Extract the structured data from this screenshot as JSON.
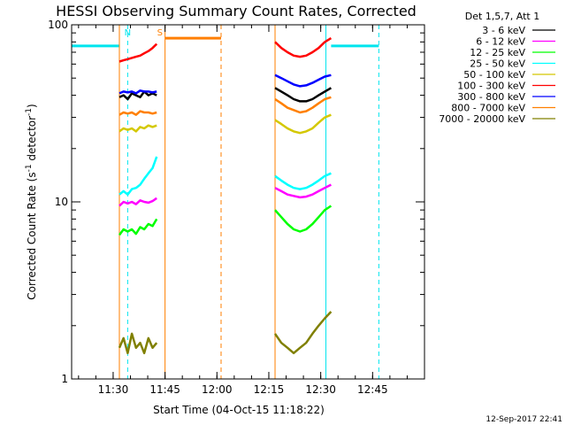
{
  "colors": {
    "background": "#ffffff",
    "axis": "#000000",
    "attenuator_line": "#00e5ee",
    "saa_line": "#ff7f00"
  },
  "chart_data": {
    "type": "line",
    "title": "HESSI Observing Summary Count Rates, Corrected",
    "xlabel": "Start Time (04-Oct-15 11:18:22)",
    "ylabel": "Corrected Count Rate (s⁻¹ detector⁻¹)",
    "ylabel_parts": {
      "main": "Corrected Count Rate (s",
      "sup1": "-1",
      "mid": " detector",
      "sup2": "-1",
      "end": ")"
    },
    "yscale": "log",
    "xlim_minutes": [
      11.3,
      13.0
    ],
    "ylim": [
      1,
      100
    ],
    "x_ticks": [
      "11:30",
      "11:45",
      "12:00",
      "12:15",
      "12:30",
      "12:45"
    ],
    "x_tick_values": [
      11.5,
      11.75,
      12.0,
      12.25,
      12.5,
      12.75
    ],
    "y_ticks": [
      "1",
      "10",
      "100"
    ],
    "y_tick_values": [
      1,
      10,
      100
    ],
    "legend_title": "Det 1,5,7, Att 1",
    "legend_position": "top-right",
    "series": [
      {
        "name": "3 - 6 keV",
        "color": "#000000",
        "segments": [
          {
            "x": [
              11.53,
              11.55,
              11.57,
              11.59,
              11.61,
              11.63,
              11.65,
              11.67,
              11.69,
              11.71
            ],
            "y": [
              39,
              40,
              38,
              41,
              40,
              39,
              42,
              40,
              41,
              40
            ]
          },
          {
            "x": [
              12.28,
              12.31,
              12.34,
              12.37,
              12.4,
              12.43,
              12.46,
              12.49,
              12.52,
              12.55
            ],
            "y": [
              44,
              42,
              40,
              38,
              37,
              37,
              38,
              40,
              42,
              44
            ]
          }
        ]
      },
      {
        "name": "6 - 12 keV",
        "color": "#ff00ff",
        "segments": [
          {
            "x": [
              11.53,
              11.55,
              11.57,
              11.59,
              11.61,
              11.63,
              11.65,
              11.67,
              11.69,
              11.71
            ],
            "y": [
              9.5,
              10,
              9.8,
              10,
              9.7,
              10.2,
              10,
              9.9,
              10.1,
              10.5
            ]
          },
          {
            "x": [
              12.28,
              12.31,
              12.34,
              12.37,
              12.4,
              12.43,
              12.46,
              12.49,
              12.52,
              12.55
            ],
            "y": [
              12,
              11.5,
              11,
              10.8,
              10.6,
              10.7,
              11,
              11.5,
              12,
              12.5
            ]
          }
        ]
      },
      {
        "name": "12 - 25 keV",
        "color": "#00ff00",
        "segments": [
          {
            "x": [
              11.53,
              11.55,
              11.57,
              11.59,
              11.61,
              11.63,
              11.65,
              11.67,
              11.69,
              11.71
            ],
            "y": [
              6.5,
              7,
              6.8,
              7,
              6.6,
              7.2,
              7,
              7.5,
              7.3,
              8
            ]
          },
          {
            "x": [
              12.28,
              12.31,
              12.34,
              12.37,
              12.4,
              12.43,
              12.46,
              12.49,
              12.52,
              12.55
            ],
            "y": [
              9,
              8.2,
              7.5,
              7,
              6.8,
              7,
              7.5,
              8.2,
              9,
              9.5
            ]
          }
        ]
      },
      {
        "name": "25 - 50 keV",
        "color": "#00ffff",
        "segments": [
          {
            "x": [
              11.53,
              11.55,
              11.57,
              11.59,
              11.61,
              11.63,
              11.65,
              11.67,
              11.69,
              11.71
            ],
            "y": [
              11,
              11.5,
              11,
              11.8,
              12,
              12.5,
              13.5,
              14.5,
              15.5,
              18
            ]
          },
          {
            "x": [
              12.28,
              12.31,
              12.34,
              12.37,
              12.4,
              12.43,
              12.46,
              12.49,
              12.52,
              12.55
            ],
            "y": [
              14,
              13.2,
              12.5,
              12,
              11.8,
              12,
              12.5,
              13.2,
              14,
              14.5
            ]
          }
        ]
      },
      {
        "name": "50 - 100 keV",
        "color": "#d4c800",
        "segments": [
          {
            "x": [
              11.53,
              11.55,
              11.57,
              11.59,
              11.61,
              11.63,
              11.65,
              11.67,
              11.69,
              11.71
            ],
            "y": [
              25,
              26,
              25.5,
              26,
              25,
              26.5,
              26,
              27,
              26.5,
              27
            ]
          },
          {
            "x": [
              12.28,
              12.31,
              12.34,
              12.37,
              12.4,
              12.43,
              12.46,
              12.49,
              12.52,
              12.55
            ],
            "y": [
              29,
              27.5,
              26,
              25,
              24.5,
              25,
              26,
              28,
              30,
              31
            ]
          }
        ]
      },
      {
        "name": "100 - 300 keV",
        "color": "#ff0000",
        "segments": [
          {
            "x": [
              11.53,
              11.55,
              11.57,
              11.59,
              11.61,
              11.63,
              11.65,
              11.67,
              11.69,
              11.71
            ],
            "y": [
              62,
              63,
              64,
              65,
              66,
              67,
              69,
              71,
              74,
              78
            ]
          },
          {
            "x": [
              12.28,
              12.31,
              12.34,
              12.37,
              12.4,
              12.43,
              12.46,
              12.49,
              12.52,
              12.55
            ],
            "y": [
              80,
              74,
              70,
              67,
              66,
              67,
              70,
              74,
              80,
              84
            ]
          }
        ]
      },
      {
        "name": "300 - 800 keV",
        "color": "#0000ff",
        "segments": [
          {
            "x": [
              11.53,
              11.55,
              11.57,
              11.59,
              11.61,
              11.63,
              11.65,
              11.67,
              11.69,
              11.71
            ],
            "y": [
              41,
              42,
              41.5,
              42,
              41,
              42.5,
              42,
              42,
              41.5,
              42
            ]
          },
          {
            "x": [
              12.28,
              12.31,
              12.34,
              12.37,
              12.4,
              12.43,
              12.46,
              12.49,
              12.52,
              12.55
            ],
            "y": [
              52,
              50,
              48,
              46,
              45,
              45.5,
              47,
              49,
              51,
              52
            ]
          }
        ]
      },
      {
        "name": "800 - 7000 keV",
        "color": "#ff8000",
        "segments": [
          {
            "x": [
              11.53,
              11.55,
              11.57,
              11.59,
              11.61,
              11.63,
              11.65,
              11.67,
              11.69,
              11.71
            ],
            "y": [
              31,
              32,
              31.5,
              32,
              31,
              32.5,
              32,
              32,
              31.5,
              32
            ]
          },
          {
            "x": [
              12.28,
              12.31,
              12.34,
              12.37,
              12.4,
              12.43,
              12.46,
              12.49,
              12.52,
              12.55
            ],
            "y": [
              38,
              36,
              34,
              33,
              32,
              32.5,
              34,
              36,
              38,
              39
            ]
          }
        ]
      },
      {
        "name": "7000 - 20000 keV",
        "color": "#808000",
        "segments": [
          {
            "x": [
              11.53,
              11.55,
              11.57,
              11.59,
              11.61,
              11.63,
              11.65,
              11.67,
              11.69,
              11.71
            ],
            "y": [
              1.5,
              1.7,
              1.4,
              1.8,
              1.5,
              1.6,
              1.4,
              1.7,
              1.5,
              1.6
            ]
          },
          {
            "x": [
              12.28,
              12.31,
              12.34,
              12.37,
              12.4,
              12.43,
              12.46,
              12.49,
              12.52,
              12.55
            ],
            "y": [
              1.8,
              1.6,
              1.5,
              1.4,
              1.5,
              1.6,
              1.8,
              2.0,
              2.2,
              2.4
            ]
          }
        ]
      }
    ],
    "attenuator_state": {
      "color": "#00e5ee",
      "level": 76,
      "segments": [
        [
          11.3,
          11.53
        ],
        [
          12.55,
          12.78
        ]
      ],
      "solid_verticals": [
        11.3,
        12.525
      ],
      "dashed_verticals": [
        11.57,
        12.78
      ]
    },
    "saa": {
      "color": "#ff7f00",
      "level": 84,
      "segments": [
        [
          11.75,
          12.02
        ]
      ],
      "solid_verticals": [
        11.53,
        11.75,
        12.28
      ],
      "dashed_verticals": [
        12.02
      ]
    },
    "markers": [
      {
        "label": "N",
        "x": 11.57,
        "color": "#00e5ee"
      },
      {
        "label": "S",
        "x": 11.725,
        "color": "#ff7f00"
      }
    ]
  },
  "footer": {
    "timestamp": "12-Sep-2017 22:41"
  }
}
